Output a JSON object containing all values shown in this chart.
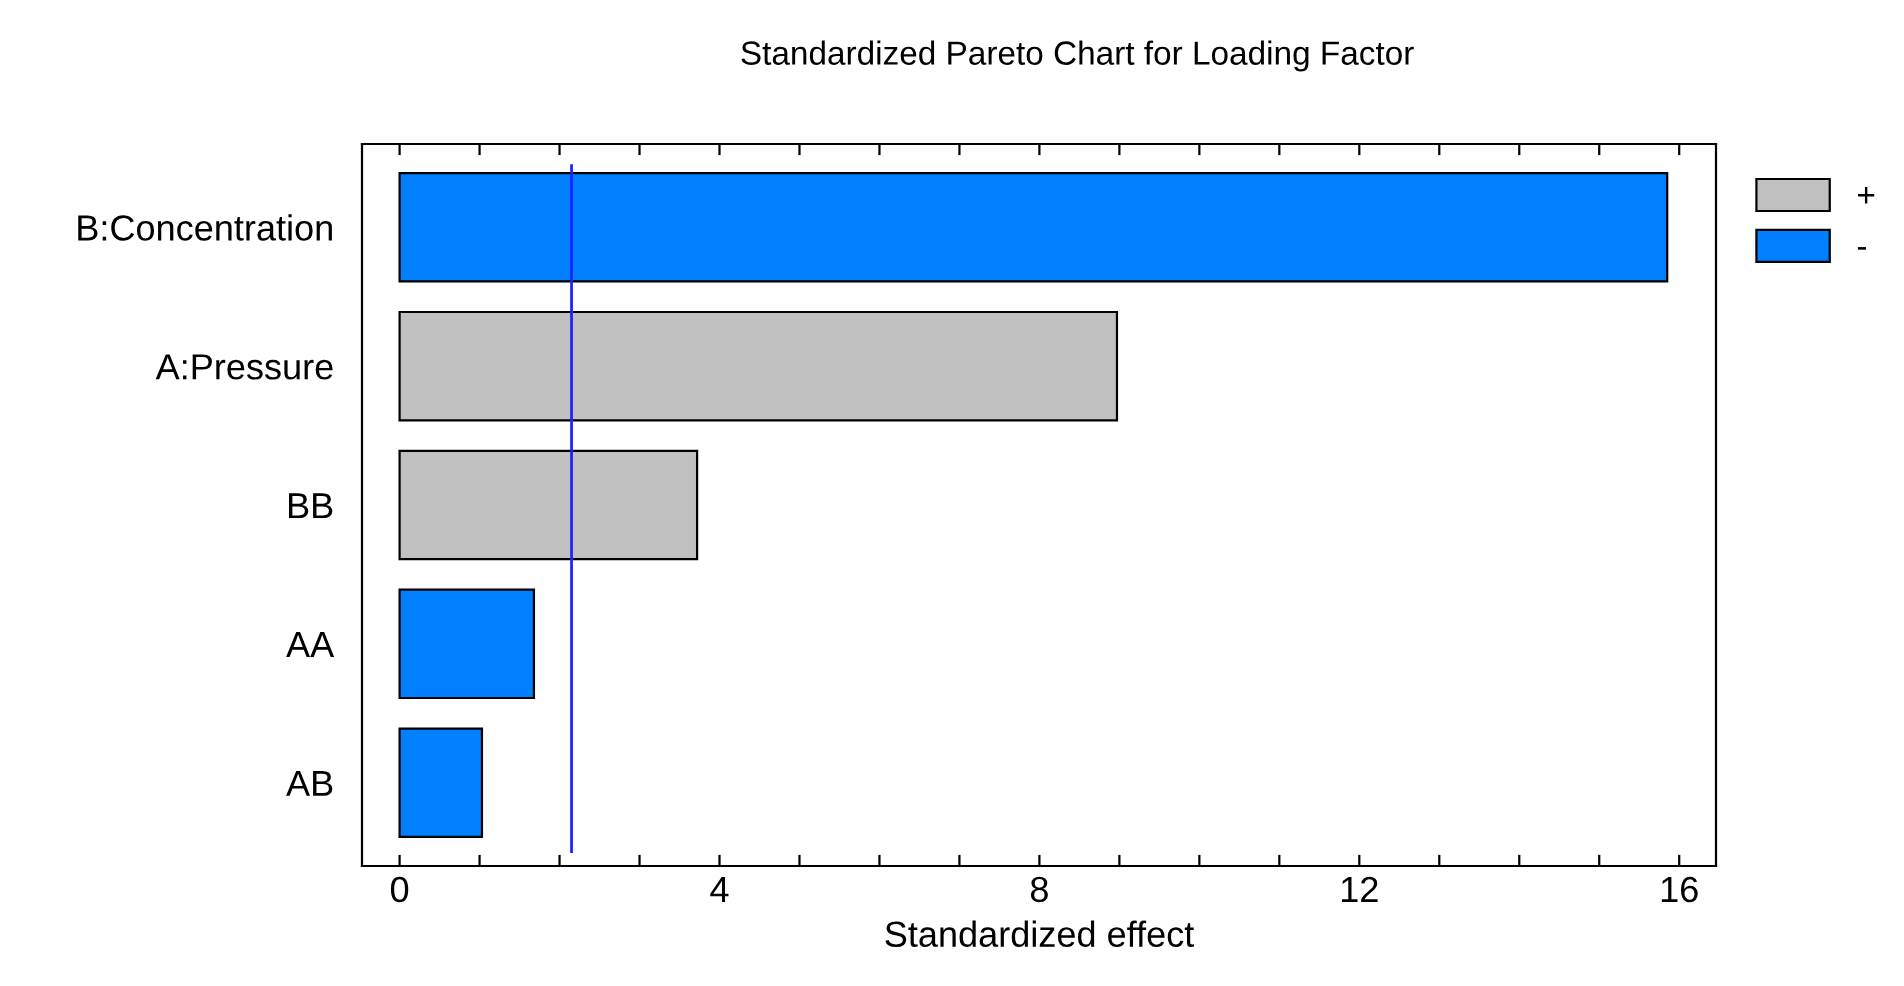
{
  "chart_data": {
    "type": "bar",
    "orientation": "horizontal",
    "title": "Standardized Pareto Chart for Loading Factor",
    "xlabel": "Standardized effect",
    "categories": [
      "B:Concentration",
      "A:Pressure",
      "BB",
      "AA",
      "AB"
    ],
    "series": [
      {
        "name": "+",
        "color": "#c0c0c0",
        "values": [
          null,
          8.97,
          3.72,
          null,
          null
        ]
      },
      {
        "name": "-",
        "color": "#0080ff",
        "values": [
          15.85,
          null,
          null,
          1.68,
          1.03
        ]
      }
    ],
    "xlim": [
      -0.47,
      16.46
    ],
    "xticks": [
      0,
      {
        "value": 1,
        "label": null
      },
      {
        "value": 2,
        "label": null
      },
      {
        "value": 3,
        "label": null
      },
      4,
      {
        "value": 5,
        "label": null
      },
      {
        "value": 6,
        "label": null
      },
      {
        "value": 7,
        "label": null
      },
      8,
      {
        "value": 9,
        "label": null
      },
      {
        "value": 10,
        "label": null
      },
      {
        "value": 11,
        "label": null
      },
      12,
      {
        "value": 13,
        "label": null
      },
      {
        "value": 14,
        "label": null
      },
      {
        "value": 15,
        "label": null
      },
      16
    ],
    "ref_lines": [
      {
        "axis": "x",
        "value": 2.15,
        "color": "#2020ff"
      }
    ],
    "legend": "right",
    "grid": false
  }
}
